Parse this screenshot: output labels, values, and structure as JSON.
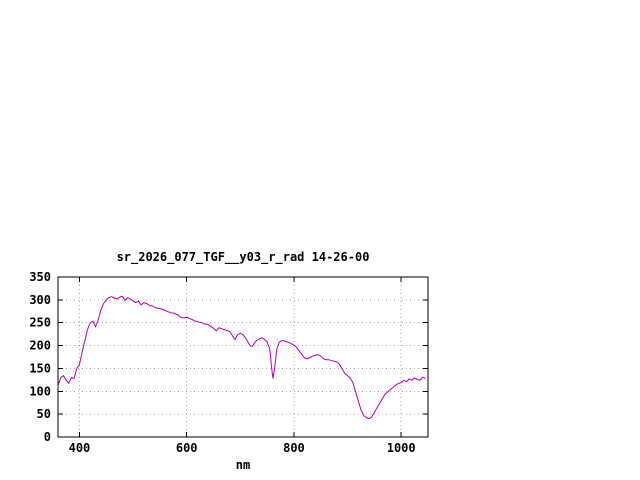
{
  "window": {
    "background": "#ffffff"
  },
  "chart_data": {
    "type": "line",
    "title": "sr_2026_077_TGF__y03_r_rad 14-26-00",
    "xlabel": "nm",
    "ylabel": "",
    "xlim": [
      360,
      1050
    ],
    "ylim": [
      0,
      350
    ],
    "x_ticks": [
      400,
      600,
      800,
      1000
    ],
    "y_ticks": [
      0,
      50,
      100,
      150,
      200,
      250,
      300,
      350
    ],
    "grid": true,
    "legend": "none",
    "line_color": "#b400b4",
    "points": [
      [
        360,
        112
      ],
      [
        365,
        130
      ],
      [
        370,
        134
      ],
      [
        375,
        125
      ],
      [
        380,
        118
      ],
      [
        385,
        130
      ],
      [
        390,
        128
      ],
      [
        395,
        150
      ],
      [
        400,
        158
      ],
      [
        405,
        185
      ],
      [
        410,
        210
      ],
      [
        415,
        235
      ],
      [
        420,
        250
      ],
      [
        425,
        253
      ],
      [
        430,
        241
      ],
      [
        435,
        256
      ],
      [
        440,
        278
      ],
      [
        445,
        292
      ],
      [
        450,
        300
      ],
      [
        455,
        305
      ],
      [
        460,
        307
      ],
      [
        465,
        304
      ],
      [
        470,
        302
      ],
      [
        475,
        306
      ],
      [
        480,
        308
      ],
      [
        485,
        299
      ],
      [
        490,
        305
      ],
      [
        495,
        302
      ],
      [
        500,
        297
      ],
      [
        505,
        294
      ],
      [
        510,
        297
      ],
      [
        515,
        289
      ],
      [
        520,
        294
      ],
      [
        525,
        292
      ],
      [
        530,
        288
      ],
      [
        535,
        287
      ],
      [
        540,
        284
      ],
      [
        545,
        282
      ],
      [
        550,
        281
      ],
      [
        555,
        279
      ],
      [
        560,
        277
      ],
      [
        565,
        274
      ],
      [
        570,
        272
      ],
      [
        575,
        271
      ],
      [
        580,
        269
      ],
      [
        585,
        266
      ],
      [
        590,
        261
      ],
      [
        595,
        261
      ],
      [
        600,
        262
      ],
      [
        605,
        259
      ],
      [
        610,
        257
      ],
      [
        615,
        254
      ],
      [
        620,
        252
      ],
      [
        625,
        251
      ],
      [
        630,
        249
      ],
      [
        635,
        247
      ],
      [
        640,
        246
      ],
      [
        645,
        242
      ],
      [
        650,
        238
      ],
      [
        655,
        232
      ],
      [
        660,
        239
      ],
      [
        665,
        237
      ],
      [
        670,
        235
      ],
      [
        675,
        233
      ],
      [
        680,
        231
      ],
      [
        685,
        222
      ],
      [
        690,
        213
      ],
      [
        695,
        224
      ],
      [
        700,
        227
      ],
      [
        705,
        224
      ],
      [
        710,
        216
      ],
      [
        715,
        206
      ],
      [
        718,
        200
      ],
      [
        722,
        198
      ],
      [
        726,
        205
      ],
      [
        730,
        211
      ],
      [
        735,
        214
      ],
      [
        740,
        217
      ],
      [
        745,
        214
      ],
      [
        750,
        208
      ],
      [
        755,
        193
      ],
      [
        758,
        155
      ],
      [
        761,
        128
      ],
      [
        764,
        150
      ],
      [
        768,
        192
      ],
      [
        772,
        206
      ],
      [
        776,
        210
      ],
      [
        780,
        211
      ],
      [
        785,
        209
      ],
      [
        790,
        207
      ],
      [
        795,
        204
      ],
      [
        800,
        201
      ],
      [
        805,
        196
      ],
      [
        810,
        188
      ],
      [
        815,
        180
      ],
      [
        820,
        173
      ],
      [
        825,
        171
      ],
      [
        830,
        174
      ],
      [
        835,
        177
      ],
      [
        840,
        179
      ],
      [
        845,
        180
      ],
      [
        850,
        177
      ],
      [
        855,
        171
      ],
      [
        860,
        169
      ],
      [
        865,
        169
      ],
      [
        870,
        167
      ],
      [
        875,
        166
      ],
      [
        880,
        164
      ],
      [
        885,
        159
      ],
      [
        890,
        149
      ],
      [
        895,
        139
      ],
      [
        900,
        134
      ],
      [
        905,
        129
      ],
      [
        910,
        119
      ],
      [
        915,
        99
      ],
      [
        920,
        79
      ],
      [
        925,
        59
      ],
      [
        930,
        47
      ],
      [
        935,
        42
      ],
      [
        940,
        40
      ],
      [
        945,
        44
      ],
      [
        950,
        54
      ],
      [
        955,
        64
      ],
      [
        960,
        74
      ],
      [
        965,
        84
      ],
      [
        970,
        94
      ],
      [
        975,
        99
      ],
      [
        980,
        104
      ],
      [
        985,
        109
      ],
      [
        990,
        114
      ],
      [
        995,
        117
      ],
      [
        1000,
        119
      ],
      [
        1005,
        124
      ],
      [
        1010,
        121
      ],
      [
        1015,
        127
      ],
      [
        1020,
        124
      ],
      [
        1025,
        129
      ],
      [
        1030,
        126
      ],
      [
        1035,
        124
      ],
      [
        1040,
        131
      ],
      [
        1045,
        128
      ]
    ]
  }
}
